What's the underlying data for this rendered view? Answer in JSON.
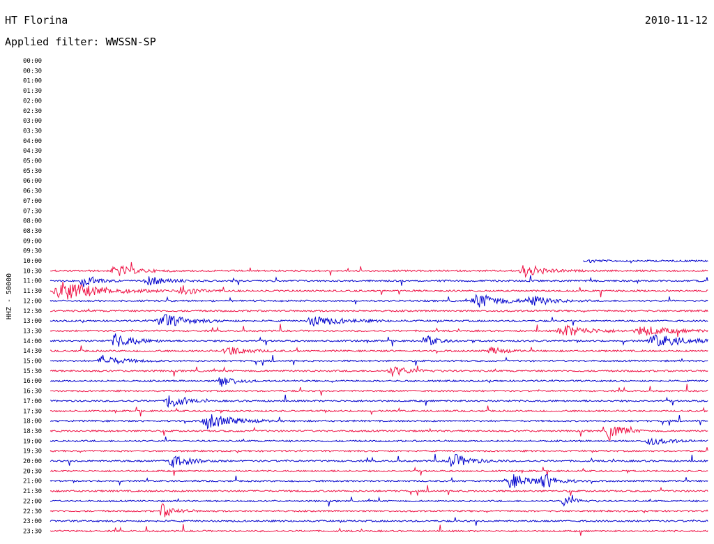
{
  "header": {
    "station": "HT Florina",
    "date": "2010-11-12",
    "filter_label": "Applied filter: WWSSN-SP"
  },
  "chart_data": {
    "type": "line",
    "title": "HT Florina",
    "ylabel": "HHZ - 50000",
    "row_labels": [
      "00:00",
      "00:30",
      "01:00",
      "01:30",
      "02:00",
      "02:30",
      "03:00",
      "03:30",
      "04:00",
      "04:30",
      "05:00",
      "05:30",
      "06:00",
      "06:30",
      "07:00",
      "07:30",
      "08:00",
      "08:30",
      "09:00",
      "09:30",
      "10:00",
      "10:30",
      "11:00",
      "11:30",
      "12:00",
      "12:30",
      "13:00",
      "13:30",
      "14:00",
      "14:30",
      "15:00",
      "15:30",
      "16:00",
      "16:30",
      "17:00",
      "17:30",
      "18:00",
      "18:30",
      "19:00",
      "19:30",
      "20:00",
      "20:30",
      "21:00",
      "21:30",
      "22:00",
      "22:30",
      "23:00",
      "23:30"
    ],
    "first_row_with_data": "10:00",
    "colors": [
      "#0000cc",
      "#ee1144"
    ],
    "x_range_minutes": [
      0,
      30
    ],
    "events": [
      {
        "row": "10:00",
        "x": 0.82,
        "amp": 3,
        "width": 0.01
      },
      {
        "row": "10:30",
        "x": 0.1,
        "amp": 9,
        "width": 0.03
      },
      {
        "row": "10:30",
        "x": 0.72,
        "amp": 10,
        "width": 0.03
      },
      {
        "row": "11:00",
        "x": 0.05,
        "amp": 11,
        "width": 0.02
      },
      {
        "row": "11:00",
        "x": 0.15,
        "amp": 6,
        "width": 0.03
      },
      {
        "row": "11:30",
        "x": 0.02,
        "amp": 14,
        "width": 0.06
      },
      {
        "row": "11:30",
        "x": 0.2,
        "amp": 10,
        "width": 0.02
      },
      {
        "row": "12:00",
        "x": 0.65,
        "amp": 10,
        "width": 0.04
      },
      {
        "row": "12:00",
        "x": 0.73,
        "amp": 8,
        "width": 0.03
      },
      {
        "row": "13:00",
        "x": 0.17,
        "amp": 10,
        "width": 0.04
      },
      {
        "row": "13:00",
        "x": 0.4,
        "amp": 7,
        "width": 0.05
      },
      {
        "row": "13:30",
        "x": 0.78,
        "amp": 9,
        "width": 0.04
      },
      {
        "row": "13:30",
        "x": 0.9,
        "amp": 7,
        "width": 0.05
      },
      {
        "row": "14:00",
        "x": 0.1,
        "amp": 11,
        "width": 0.03
      },
      {
        "row": "14:00",
        "x": 0.57,
        "amp": 8,
        "width": 0.02
      },
      {
        "row": "14:00",
        "x": 0.92,
        "amp": 9,
        "width": 0.05
      },
      {
        "row": "14:30",
        "x": 0.27,
        "amp": 7,
        "width": 0.03
      },
      {
        "row": "14:30",
        "x": 0.67,
        "amp": 6,
        "width": 0.02
      },
      {
        "row": "15:00",
        "x": 0.08,
        "amp": 8,
        "width": 0.03
      },
      {
        "row": "15:30",
        "x": 0.52,
        "amp": 7,
        "width": 0.03
      },
      {
        "row": "16:00",
        "x": 0.26,
        "amp": 10,
        "width": 0.02
      },
      {
        "row": "17:00",
        "x": 0.18,
        "amp": 13,
        "width": 0.02
      },
      {
        "row": "18:00",
        "x": 0.24,
        "amp": 11,
        "width": 0.04
      },
      {
        "row": "18:30",
        "x": 0.85,
        "amp": 14,
        "width": 0.02
      },
      {
        "row": "19:00",
        "x": 0.91,
        "amp": 6,
        "width": 0.03
      },
      {
        "row": "20:00",
        "x": 0.18,
        "amp": 11,
        "width": 0.03
      },
      {
        "row": "20:00",
        "x": 0.61,
        "amp": 11,
        "width": 0.03
      },
      {
        "row": "21:00",
        "x": 0.7,
        "amp": 10,
        "width": 0.04
      },
      {
        "row": "21:00",
        "x": 0.75,
        "amp": 9,
        "width": 0.02
      },
      {
        "row": "22:00",
        "x": 0.78,
        "amp": 7,
        "width": 0.02
      },
      {
        "row": "22:30",
        "x": 0.17,
        "amp": 10,
        "width": 0.02
      }
    ]
  }
}
